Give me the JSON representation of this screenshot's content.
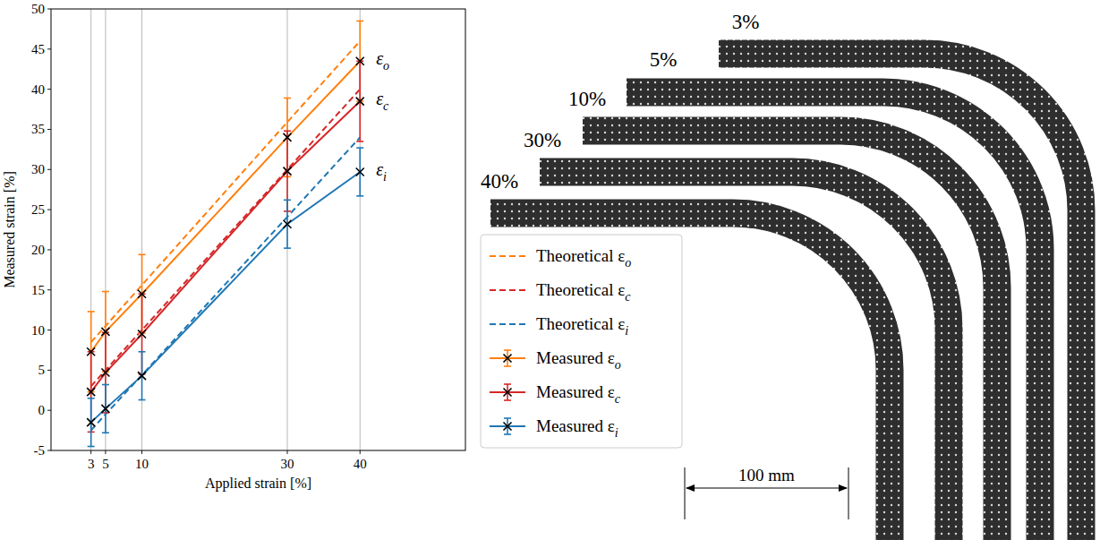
{
  "chart_data": {
    "type": "line",
    "x_label": "Applied strain [%]",
    "y_label": "Measured strain [%]",
    "x": [
      3,
      5,
      10,
      30,
      40
    ],
    "xlim": [
      -2.5,
      54.5
    ],
    "xticks": [
      3,
      5,
      10,
      30,
      40
    ],
    "ylim": [
      -5,
      50
    ],
    "yticks": [
      -5,
      0,
      5,
      10,
      15,
      20,
      25,
      30,
      35,
      40,
      45,
      50
    ],
    "grid": "x",
    "legend": "right",
    "series": [
      {
        "name": "Theoretical εo",
        "color": "#ff7f0e",
        "line_style": "dashed",
        "values": [
          8.5,
          10.5,
          15.6,
          35.9,
          46.0
        ]
      },
      {
        "name": "Theoretical εc",
        "color": "#d62728",
        "line_style": "dashed",
        "values": [
          3.0,
          5.0,
          10.0,
          30.0,
          40.0
        ]
      },
      {
        "name": "Theoretical εi",
        "color": "#1f77b4",
        "line_style": "dashed",
        "values": [
          -2.5,
          -0.5,
          4.4,
          24.1,
          34.0
        ]
      },
      {
        "name": "Measured εo",
        "color": "#ff7f0e",
        "line_style": "solid",
        "marker": "x",
        "values": [
          7.3,
          9.8,
          14.5,
          34.0,
          43.5
        ],
        "errors": [
          5.0,
          5.0,
          4.9,
          4.9,
          5.0
        ]
      },
      {
        "name": "Measured εc",
        "color": "#d62728",
        "line_style": "solid",
        "marker": "x",
        "values": [
          2.3,
          4.7,
          9.5,
          29.8,
          38.5
        ],
        "errors": [
          5.0,
          5.0,
          5.0,
          5.0,
          5.0
        ]
      },
      {
        "name": "Measured εi",
        "color": "#1f77b4",
        "line_style": "solid",
        "marker": "x",
        "values": [
          -1.5,
          0.2,
          4.3,
          23.2,
          29.7
        ],
        "errors": [
          3.0,
          3.0,
          3.0,
          3.0,
          3.0
        ]
      }
    ],
    "annotations": [
      "εo",
      "εc",
      "εi"
    ]
  },
  "photo": {
    "labels": [
      "3%",
      "5%",
      "10%",
      "30%",
      "40%"
    ],
    "scale_bar": "100 mm"
  }
}
